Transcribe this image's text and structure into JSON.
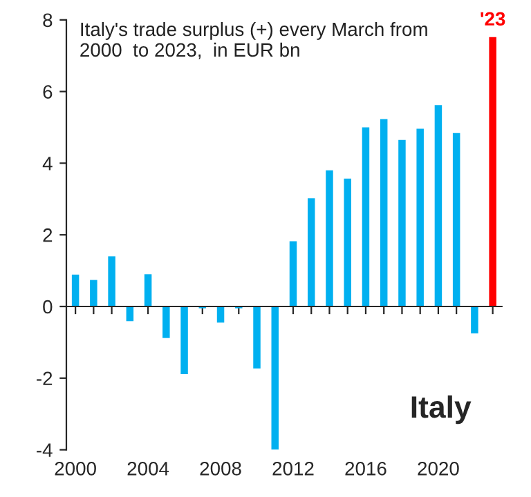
{
  "chart_data": {
    "type": "bar",
    "title": "Italy's trade surplus (+) every March from\n2000  to 2023,  in EUR bn",
    "x": [
      2000,
      2001,
      2002,
      2003,
      2004,
      2005,
      2006,
      2007,
      2008,
      2009,
      2010,
      2011,
      2012,
      2013,
      2014,
      2015,
      2016,
      2017,
      2018,
      2019,
      2020,
      2021,
      2022,
      2023
    ],
    "values": [
      0.89,
      0.74,
      1.4,
      -0.41,
      0.9,
      -0.88,
      -1.89,
      -0.05,
      -0.45,
      -0.05,
      -1.73,
      -4.0,
      1.82,
      3.02,
      3.8,
      3.57,
      5.0,
      5.23,
      4.65,
      4.96,
      5.62,
      4.84,
      -0.75,
      7.52
    ],
    "colors": [
      "#00b0f0",
      "#00b0f0",
      "#00b0f0",
      "#00b0f0",
      "#00b0f0",
      "#00b0f0",
      "#00b0f0",
      "#00b0f0",
      "#00b0f0",
      "#00b0f0",
      "#00b0f0",
      "#00b0f0",
      "#00b0f0",
      "#00b0f0",
      "#00b0f0",
      "#00b0f0",
      "#00b0f0",
      "#00b0f0",
      "#00b0f0",
      "#00b0f0",
      "#00b0f0",
      "#00b0f0",
      "#00b0f0",
      "#ff0000"
    ],
    "xlim": [
      1999.5,
      2023.5
    ],
    "xticks": [
      2000,
      {
        "value": 2001,
        "label": null
      },
      {
        "value": 2002,
        "label": null
      },
      {
        "value": 2003,
        "label": null
      },
      2004,
      {
        "value": 2005,
        "label": null
      },
      {
        "value": 2006,
        "label": null
      },
      {
        "value": 2007,
        "label": null
      },
      2008,
      {
        "value": 2009,
        "label": null
      },
      {
        "value": 2010,
        "label": null
      },
      {
        "value": 2011,
        "label": null
      },
      2012,
      {
        "value": 2013,
        "label": null
      },
      {
        "value": 2014,
        "label": null
      },
      {
        "value": 2015,
        "label": null
      },
      2016,
      {
        "value": 2017,
        "label": null
      },
      {
        "value": 2018,
        "label": null
      },
      {
        "value": 2019,
        "label": null
      },
      2020,
      {
        "value": 2021,
        "label": null
      },
      {
        "value": 2022,
        "label": null
      },
      {
        "value": 2023,
        "label": null
      }
    ],
    "ylim": [
      -4,
      8
    ],
    "yticks": [
      -4,
      -2,
      0,
      2,
      4,
      6,
      8
    ],
    "annotations": [
      {
        "text": "'23",
        "x": 2023,
        "y": 7.52
      },
      "Italy"
    ]
  }
}
